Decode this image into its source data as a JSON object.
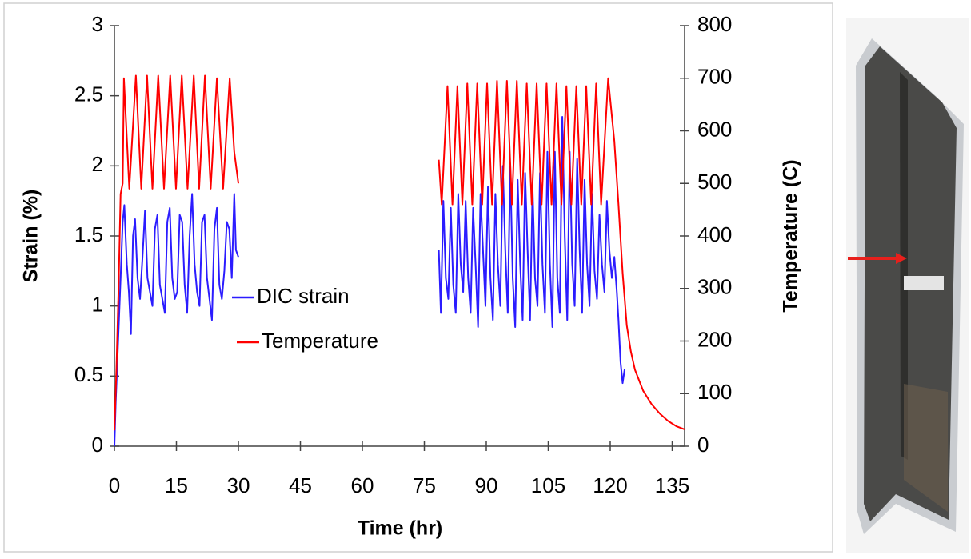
{
  "chart_data": {
    "type": "line",
    "xlabel": "Time (hr)",
    "ylabel": "Strain (%)",
    "y2label": "Temperature (C)",
    "xlim": [
      0,
      138
    ],
    "xticks": [
      0,
      15,
      30,
      45,
      60,
      75,
      90,
      105,
      120,
      135
    ],
    "ylim": [
      0,
      3
    ],
    "yticks": [
      0,
      0.5,
      1,
      1.5,
      2,
      2.5,
      3
    ],
    "y2lim": [
      0,
      800
    ],
    "y2ticks": [
      0,
      100,
      200,
      300,
      400,
      500,
      600,
      700,
      800
    ],
    "grid": false,
    "series": [
      {
        "name": "DIC strain",
        "color": "#2b1cff",
        "x": [
          0,
          0.3,
          0.7,
          1.1,
          1.5,
          2,
          2.4,
          3,
          3.5,
          4,
          4.5,
          5,
          5.6,
          6.2,
          6.8,
          7.4,
          8,
          8.6,
          9.2,
          9.8,
          10.4,
          11,
          11.6,
          12.2,
          12.8,
          13.4,
          14,
          14.6,
          15.2,
          15.8,
          16.4,
          17,
          17.6,
          18.2,
          18.8,
          19.4,
          20,
          20.6,
          21.2,
          21.8,
          22.4,
          23,
          23.6,
          24.2,
          24.8,
          25.4,
          26,
          26.6,
          27.2,
          27.8,
          28.4,
          29,
          29.4,
          30,
          null,
          78.5,
          79,
          79.6,
          80.2,
          80.8,
          81.4,
          82,
          82.6,
          83.2,
          83.8,
          84.4,
          85,
          85.6,
          86.2,
          86.8,
          87.4,
          88,
          88.6,
          89.2,
          89.8,
          90.4,
          91,
          91.6,
          92.2,
          92.8,
          93.4,
          94,
          94.6,
          95.2,
          95.8,
          96.4,
          97,
          97.6,
          98.2,
          98.8,
          99.4,
          100,
          100.6,
          101.2,
          101.8,
          102.4,
          103,
          103.6,
          104.2,
          104.8,
          105.4,
          106,
          106.6,
          107.2,
          107.8,
          108.4,
          109,
          109.6,
          110.2,
          110.8,
          111.4,
          112,
          112.6,
          113.2,
          113.8,
          114.4,
          115,
          115.6,
          116.2,
          116.8,
          117.4,
          118,
          118.6,
          119.2,
          119.8,
          120.4,
          121,
          121.6,
          122,
          122.5,
          123,
          123.5
        ],
        "values": [
          0,
          0.3,
          0.6,
          0.9,
          1.2,
          1.6,
          1.72,
          1.3,
          1.1,
          0.8,
          1.5,
          1.62,
          1.2,
          1.05,
          1.35,
          1.68,
          1.2,
          1.1,
          1.0,
          1.55,
          1.65,
          1.15,
          1.05,
          0.95,
          1.6,
          1.7,
          1.2,
          1.05,
          1.1,
          1.65,
          1.6,
          1.15,
          0.95,
          1.5,
          1.8,
          1.3,
          1.1,
          1.0,
          1.6,
          1.65,
          1.2,
          1.05,
          0.9,
          1.55,
          1.7,
          1.15,
          1.05,
          1.25,
          1.6,
          1.55,
          1.2,
          1.8,
          1.4,
          1.35,
          null,
          1.4,
          0.95,
          1.75,
          1.2,
          1.05,
          1.7,
          1.15,
          0.95,
          1.8,
          1.3,
          1.1,
          1.75,
          1.2,
          0.95,
          1.7,
          1.3,
          0.85,
          1.8,
          1.4,
          1.0,
          1.85,
          1.2,
          0.9,
          1.8,
          1.3,
          1.0,
          2.0,
          1.4,
          0.95,
          2.0,
          1.2,
          0.85,
          1.9,
          1.3,
          0.9,
          1.95,
          1.4,
          0.9,
          1.85,
          1.2,
          1.0,
          1.95,
          1.3,
          0.95,
          2.1,
          1.3,
          0.85,
          2.1,
          1.2,
          0.95,
          2.35,
          1.5,
          0.9,
          2.1,
          1.3,
          1.0,
          2.05,
          1.4,
          0.95,
          1.9,
          1.3,
          1.0,
          1.8,
          1.25,
          1.05,
          1.65,
          1.3,
          1.1,
          1.75,
          1.4,
          1.2,
          1.35,
          1.1,
          0.9,
          0.6,
          0.45,
          0.55
        ]
      },
      {
        "name": "Temperature",
        "color": "#ff0000",
        "axis": "y2",
        "x": [
          0,
          0.5,
          1,
          1.5,
          2,
          2.3,
          3.6,
          5.2,
          6.5,
          7.9,
          9.2,
          10.6,
          12,
          13.5,
          14.9,
          16.3,
          17.7,
          19.2,
          20.5,
          21.9,
          23.3,
          24.8,
          26.3,
          27.9,
          29,
          30,
          null,
          78.5,
          79.2,
          80.6,
          81.8,
          83,
          84.2,
          85.4,
          86.6,
          87.8,
          89,
          90.2,
          91.4,
          92.6,
          93.8,
          95,
          96.2,
          97.4,
          98.6,
          99.8,
          101,
          102.2,
          103.4,
          104.6,
          105.8,
          107,
          108.2,
          109.4,
          110.6,
          111.8,
          113,
          114.2,
          115.4,
          116.6,
          117.8,
          119.5,
          121,
          122,
          123,
          124,
          125,
          126,
          128,
          130,
          132,
          134,
          136,
          138
        ],
        "values": [
          30,
          150,
          300,
          480,
          500,
          700,
          490,
          705,
          490,
          705,
          490,
          705,
          490,
          705,
          490,
          705,
          490,
          705,
          490,
          705,
          490,
          700,
          490,
          700,
          560,
          500,
          null,
          545,
          460,
          685,
          460,
          685,
          460,
          690,
          460,
          690,
          460,
          690,
          460,
          695,
          460,
          695,
          460,
          695,
          460,
          690,
          460,
          690,
          460,
          690,
          460,
          690,
          460,
          685,
          460,
          685,
          460,
          685,
          460,
          690,
          460,
          700,
          580,
          460,
          330,
          230,
          180,
          145,
          105,
          80,
          62,
          48,
          38,
          32
        ]
      }
    ]
  }
}
